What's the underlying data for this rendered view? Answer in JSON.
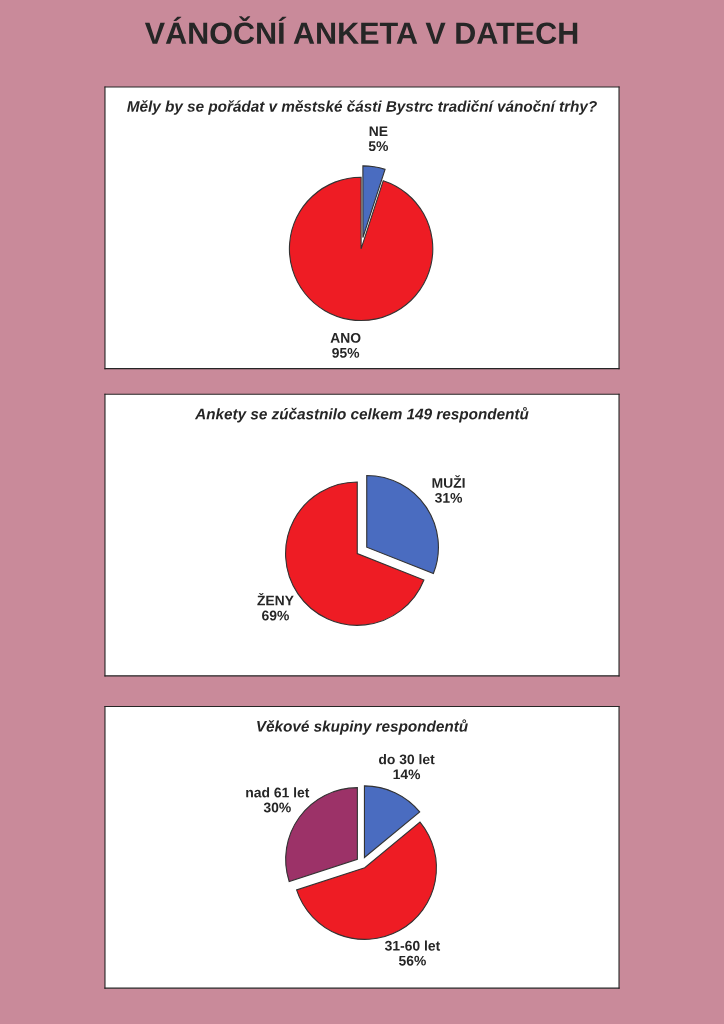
{
  "chart_data": [
    {
      "type": "pie",
      "title": "VÁNOČNÍ ANKETA V DATECH",
      "subtitle": "Měly by se pořádat v městské části Bystrc tradiční vánoční trhy?",
      "categories": [
        "NE",
        "ANO"
      ],
      "values": [
        5,
        95
      ],
      "value_labels": [
        "5%",
        "95%"
      ],
      "colors": [
        "#4a6cc0",
        "#ee1c24"
      ],
      "legend": false
    },
    {
      "type": "pie",
      "title": "Ankety se zúčastnilo celkem 149 respondentů",
      "categories": [
        "MUŽI",
        "ŽENY"
      ],
      "values": [
        31,
        69
      ],
      "value_labels": [
        "31%",
        "69%"
      ],
      "colors": [
        "#4a6cc0",
        "#ee1c24"
      ],
      "legend": false
    },
    {
      "type": "pie",
      "title": "Věkové skupiny respondentů",
      "categories": [
        "do 30 let",
        "31-60 let",
        "nad 61 let"
      ],
      "values": [
        14,
        56,
        30
      ],
      "value_labels": [
        "14%",
        "56%",
        "30%"
      ],
      "colors": [
        "#4a6cc0",
        "#ee1c24",
        "#9c3268"
      ],
      "legend": false
    }
  ]
}
